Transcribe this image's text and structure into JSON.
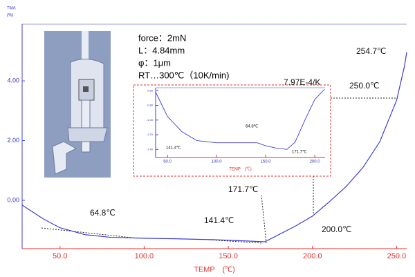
{
  "chart_data": [
    {
      "type": "line",
      "y_axis_label": "TMA",
      "y_axis_unit": "(%)",
      "x_axis_label": "TEMP　(℃)",
      "x": [
        27.5,
        40,
        50,
        64.8,
        80,
        100,
        120,
        141.4,
        160,
        171.7,
        180,
        190,
        200,
        210,
        220,
        230,
        240,
        250,
        254.7,
        256
      ],
      "series": [
        {
          "name": "TMA",
          "color": "#3b3bd6",
          "values": [
            -0.16,
            -0.62,
            -0.92,
            -1.15,
            -1.24,
            -1.27,
            -1.29,
            -1.32,
            -1.36,
            -1.39,
            -1.15,
            -0.86,
            -0.53,
            -0.05,
            0.46,
            1.1,
            1.96,
            3.35,
            4.5,
            4.96
          ]
        }
      ],
      "xlim": [
        27.5,
        256
      ],
      "ylim": [
        -1.62,
        5.9
      ],
      "xticks": [
        {
          "value": 50,
          "label": "50.0"
        },
        {
          "value": 100,
          "label": "100.0"
        },
        {
          "value": 150,
          "label": "150.0"
        },
        {
          "value": 200,
          "label": "200.0"
        },
        {
          "value": 250,
          "label": "250.0"
        }
      ],
      "yticks": [
        {
          "value": 0,
          "label": "0.00"
        },
        {
          "value": 2,
          "label": "2.00"
        },
        {
          "value": 4,
          "label": "4.00"
        }
      ],
      "annotations": [
        "64.8℃",
        "141.4℃",
        "171.7℃",
        "200.0℃",
        "250.0℃",
        "254.7℃",
        "7.97E-4/K"
      ],
      "notes": [
        "force：2mN",
        "L：4.84mm",
        "φ：1μm",
        "RT…300℃（10K/min)"
      ]
    },
    {
      "type": "line",
      "x_axis_label": "TEMP　(℃)",
      "x": [
        38,
        50,
        64.8,
        80,
        100,
        120,
        141.4,
        150,
        160,
        171.7,
        180,
        190,
        200,
        210
      ],
      "series": [
        {
          "name": "inset",
          "color": "#3b3bd6",
          "values": [
            -0.62,
            -0.95,
            -1.16,
            -1.28,
            -1.31,
            -1.31,
            -1.31,
            -1.35,
            -1.38,
            -1.4,
            -1.3,
            -1.0,
            -0.72,
            -0.58
          ]
        }
      ],
      "xlim": [
        38,
        210.5
      ],
      "ylim": [
        -1.51,
        -0.56
      ],
      "xticks": [
        {
          "value": 50,
          "label": "50.0"
        },
        {
          "value": 100,
          "label": "100.0"
        },
        {
          "value": 150,
          "label": "150.0"
        },
        {
          "value": 200,
          "label": "200.0"
        }
      ],
      "yticks": [
        {
          "value": -0.6,
          "label": "-0.60"
        },
        {
          "value": -0.8,
          "label": "-0.80"
        },
        {
          "value": -1.0,
          "label": "-1.00"
        },
        {
          "value": -1.2,
          "label": "-1.20"
        },
        {
          "value": -1.4,
          "label": "-1.40"
        }
      ],
      "annotations": [
        "64.8℃",
        "141.4℃",
        "171.7℃"
      ]
    }
  ]
}
